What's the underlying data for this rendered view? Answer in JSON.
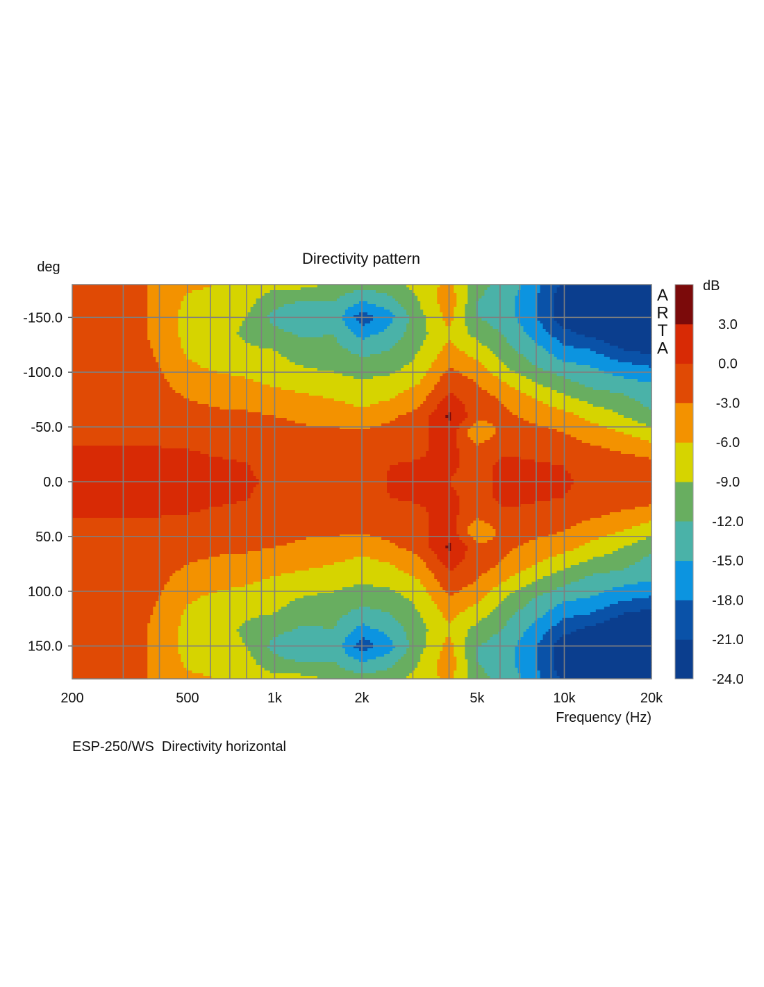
{
  "chart_data": {
    "type": "heatmap",
    "title": "Directivity pattern",
    "ylabel": "deg",
    "xlabel": "Frequency (Hz)",
    "caption": "ESP-250/WS  Directivity horizontal",
    "watermark": "ARTA",
    "x_scale": "log",
    "xlim": [
      200,
      20000
    ],
    "ylim": [
      -180,
      180
    ],
    "x_ticks": [
      {
        "value": 200,
        "label": "200"
      },
      {
        "value": 500,
        "label": "500"
      },
      {
        "value": 1000,
        "label": "1k"
      },
      {
        "value": 2000,
        "label": "2k"
      },
      {
        "value": 5000,
        "label": "5k"
      },
      {
        "value": 10000,
        "label": "10k"
      },
      {
        "value": 20000,
        "label": "20k"
      }
    ],
    "y_ticks": [
      {
        "value": -150,
        "label": "-150.0"
      },
      {
        "value": -100,
        "label": "-100.0"
      },
      {
        "value": -50,
        "label": "-50.0"
      },
      {
        "value": 0,
        "label": "0.0"
      },
      {
        "value": 50,
        "label": "50.0"
      },
      {
        "value": 100,
        "label": "100.0"
      },
      {
        "value": 150,
        "label": "150.0"
      }
    ],
    "grid": true,
    "colorbar": {
      "label": "dB",
      "range": [
        -24,
        6
      ],
      "step": 3,
      "tick_labels": [
        "3.0",
        "0.0",
        "-3.0",
        "-6.0",
        "-9.0",
        "-12.0",
        "-15.0",
        "-18.0",
        "-21.0",
        "-24.0"
      ],
      "tick_values": [
        3,
        0,
        -3,
        -6,
        -9,
        -12,
        -15,
        -18,
        -21,
        -24
      ],
      "colors": [
        "#0b3e8e",
        "#0a52a8",
        "#0c94e0",
        "#4ab2a8",
        "#68ae60",
        "#d6d400",
        "#f39200",
        "#e04a05",
        "#d82a05",
        "#7b0a0a"
      ]
    },
    "frequencies": [
      200,
      250,
      315,
      400,
      500,
      630,
      800,
      1000,
      1250,
      1600,
      2000,
      2500,
      3150,
      4000,
      5000,
      6300,
      8000,
      10000,
      12500,
      16000,
      20000
    ],
    "angles": [
      -180,
      -165,
      -150,
      -135,
      -120,
      -105,
      -90,
      -75,
      -60,
      -45,
      -30,
      -15,
      0,
      15,
      30,
      45,
      60,
      75,
      90,
      105,
      120,
      135,
      150,
      165,
      180
    ],
    "values_db": [
      [
        -1.5,
        -1.5,
        -1.5,
        -4,
        -5.5,
        -6,
        -6.5,
        -8,
        -8,
        -9.5,
        -11,
        -10,
        -8,
        -5,
        -11,
        -13,
        -17,
        -22,
        -24,
        -24,
        -24
      ],
      [
        -1.5,
        -1.5,
        -1.5,
        -4,
        -6.5,
        -7,
        -8,
        -11,
        -12,
        -12,
        -15,
        -13,
        -9,
        -4,
        -12,
        -14,
        -18,
        -23,
        -24,
        -24,
        -24
      ],
      [
        -1.5,
        -1.5,
        -1.5,
        -4,
        -7,
        -8,
        -9,
        -13,
        -15,
        -13,
        -20,
        -16,
        -10,
        -5,
        -12,
        -13.5,
        -18,
        -23,
        -24,
        -24,
        -24
      ],
      [
        -1.5,
        -1.5,
        -1.5,
        -4,
        -7,
        -8,
        -9.5,
        -11,
        -12.5,
        -12,
        -16,
        -14,
        -10,
        -6.5,
        -10,
        -12.5,
        -16,
        -20,
        -22,
        -24,
        -24
      ],
      [
        -1.5,
        -1.5,
        -1.5,
        -3.5,
        -6.5,
        -7.5,
        -8.5,
        -9,
        -10.5,
        -11,
        -13,
        -12,
        -9,
        -5,
        -7.5,
        -11,
        -14,
        -17,
        -18,
        -21,
        -22
      ],
      [
        -1.5,
        -1.5,
        -1.5,
        -3,
        -5.5,
        -6.5,
        -7,
        -8,
        -9,
        -9.5,
        -10.5,
        -10,
        -8,
        -3,
        -5,
        -9,
        -12,
        -14,
        -15,
        -17,
        -18
      ],
      [
        -1.5,
        -1.5,
        -1.5,
        -2.5,
        -4,
        -5,
        -5.5,
        -6.5,
        -7.5,
        -8,
        -8.5,
        -8,
        -6,
        -1,
        -3,
        -6,
        -9,
        -11,
        -13,
        -14,
        -15
      ],
      [
        -1.5,
        -1.5,
        -1.5,
        -2,
        -3,
        -3.5,
        -4,
        -4.5,
        -5,
        -6,
        -7,
        -6,
        -4,
        1,
        -1.5,
        -3.5,
        -6,
        -8,
        -10,
        -11,
        -13.5
      ],
      [
        -1.5,
        -1.5,
        -1.5,
        -1.5,
        -2,
        -2.5,
        -2.5,
        -3,
        -3.5,
        -4,
        -5,
        -3.5,
        -2,
        3.5,
        -2,
        -2.5,
        -4,
        -5,
        -7,
        -9,
        -11
      ],
      [
        -1.5,
        -1.5,
        -1.5,
        -1.5,
        -1.5,
        -1.5,
        -1.5,
        -2,
        -2.5,
        -2.5,
        -2.5,
        -2,
        -1,
        2,
        -6,
        -1.5,
        -2,
        -3,
        -4.5,
        -6,
        -8
      ],
      [
        0.5,
        0.5,
        0.3,
        0.2,
        0,
        -0.3,
        -0.5,
        -1.5,
        -1.5,
        -1.5,
        -1.5,
        -1,
        -0.5,
        1,
        -2,
        -0.5,
        -1,
        -1.5,
        -2.5,
        -3.5,
        -4.5
      ],
      [
        1.5,
        1.5,
        1,
        0.8,
        0.5,
        0.3,
        0.1,
        -1,
        -1,
        -1,
        -1,
        0,
        0.3,
        0.5,
        -1,
        0.8,
        0.3,
        0,
        -1,
        -1.5,
        -2
      ],
      [
        1.5,
        1.5,
        1,
        1,
        0.8,
        0.6,
        0.4,
        -0.5,
        -0.5,
        -1,
        -1,
        0.2,
        0.5,
        0,
        -1,
        1,
        0.5,
        0.3,
        -0.5,
        -1,
        -1.5
      ],
      [
        1.5,
        1.5,
        1,
        0.8,
        0.5,
        0.3,
        0.1,
        -1,
        -1,
        -1,
        -1,
        0,
        0.3,
        0.5,
        -1,
        0.8,
        0.3,
        0,
        -1,
        -1.5,
        -2
      ],
      [
        0.5,
        0.5,
        0.3,
        0.2,
        0,
        -0.3,
        -0.5,
        -1.5,
        -1.5,
        -1.5,
        -1.5,
        -1,
        -0.5,
        1,
        -2,
        -0.5,
        -1,
        -1.5,
        -2.5,
        -3.5,
        -4.5
      ],
      [
        -1.5,
        -1.5,
        -1.5,
        -1.5,
        -1.5,
        -1.5,
        -1.5,
        -2,
        -2.5,
        -2.5,
        -2.5,
        -2,
        -1,
        2,
        -6,
        -1.5,
        -2,
        -3,
        -4.5,
        -6,
        -8
      ],
      [
        -1.5,
        -1.5,
        -1.5,
        -1.5,
        -2,
        -2.5,
        -2.5,
        -3,
        -3.5,
        -4,
        -5,
        -3.5,
        -2,
        3.5,
        -2,
        -2.5,
        -4,
        -5,
        -7,
        -9,
        -11
      ],
      [
        -1.5,
        -1.5,
        -1.5,
        -2,
        -3,
        -3.5,
        -4,
        -4.5,
        -5,
        -6,
        -7,
        -6,
        -4,
        1,
        -1.5,
        -3.5,
        -6,
        -8,
        -10,
        -11,
        -13.5
      ],
      [
        -1.5,
        -1.5,
        -1.5,
        -2.5,
        -4,
        -5,
        -5.5,
        -6.5,
        -7.5,
        -8,
        -8.5,
        -8,
        -6,
        -1,
        -3,
        -6,
        -9,
        -11,
        -13,
        -14,
        -15
      ],
      [
        -1.5,
        -1.5,
        -1.5,
        -3,
        -5.5,
        -6.5,
        -7,
        -8,
        -9,
        -9.5,
        -10.5,
        -10,
        -8,
        -3,
        -5,
        -9,
        -12,
        -14,
        -15,
        -17,
        -18
      ],
      [
        -1.5,
        -1.5,
        -1.5,
        -3.5,
        -6.5,
        -7.5,
        -8.5,
        -9,
        -10.5,
        -11,
        -13,
        -12,
        -9,
        -5,
        -7.5,
        -11,
        -14,
        -17,
        -18,
        -21,
        -22
      ],
      [
        -1.5,
        -1.5,
        -1.5,
        -4,
        -7,
        -8,
        -9.5,
        -11,
        -12.5,
        -12,
        -16,
        -14,
        -10,
        -6.5,
        -10,
        -12.5,
        -16,
        -20,
        -22,
        -24,
        -24
      ],
      [
        -1.5,
        -1.5,
        -1.5,
        -4,
        -7,
        -8,
        -9,
        -13,
        -15,
        -13,
        -20,
        -16,
        -10,
        -5,
        -12,
        -13.5,
        -18,
        -23,
        -24,
        -24,
        -24
      ],
      [
        -1.5,
        -1.5,
        -1.5,
        -4,
        -6.5,
        -7,
        -8,
        -11,
        -12,
        -12,
        -15,
        -13,
        -9,
        -4,
        -12,
        -14,
        -18,
        -23,
        -24,
        -24,
        -24
      ],
      [
        -1.5,
        -1.5,
        -1.5,
        -4,
        -5.5,
        -6,
        -6.5,
        -8,
        -8,
        -9.5,
        -11,
        -10,
        -8,
        -5,
        -11,
        -13,
        -17,
        -22,
        -24,
        -24,
        -24
      ]
    ]
  }
}
